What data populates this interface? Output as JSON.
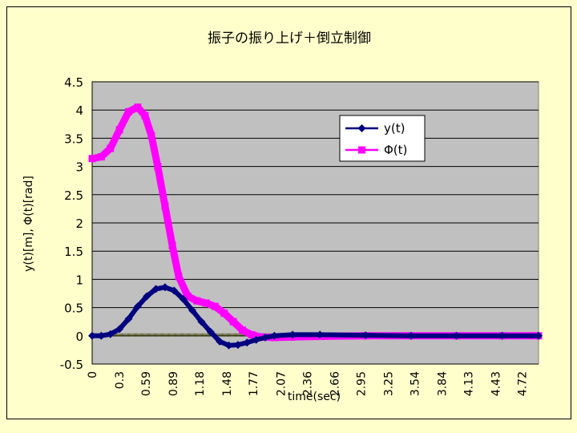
{
  "colors": {
    "background": "#ffffcc",
    "plot_background": "#c0c0c0",
    "grid": "#000000",
    "y_series": "#000080",
    "phi_series": "#ff00ff"
  },
  "chart_data": {
    "type": "line",
    "title": "振子の振り上げ＋倒立制御",
    "xlabel": "time(sec)",
    "ylabel": "y(t)[m], Φ(t)[rad]",
    "ylim": [
      -0.5,
      4.5
    ],
    "xlim": [
      0,
      4.9
    ],
    "grid": true,
    "legend_position": "top-right",
    "y_ticks": [
      "4.5",
      "4",
      "3.5",
      "3",
      "2.5",
      "2",
      "1.5",
      "1",
      "0.5",
      "0",
      "-0.5"
    ],
    "x_ticks": [
      "0",
      "0.3",
      "0.59",
      "0.89",
      "1.18",
      "1.48",
      "1.77",
      "2.07",
      "2.36",
      "2.66",
      "2.95",
      "3.25",
      "3.54",
      "3.84",
      "4.13",
      "4.43",
      "4.72"
    ],
    "series": [
      {
        "name": "y(t)",
        "marker": "diamond",
        "points": [
          [
            0,
            0.0
          ],
          [
            0.1,
            0.0
          ],
          [
            0.2,
            0.03
          ],
          [
            0.3,
            0.12
          ],
          [
            0.4,
            0.3
          ],
          [
            0.5,
            0.52
          ],
          [
            0.6,
            0.7
          ],
          [
            0.7,
            0.83
          ],
          [
            0.8,
            0.86
          ],
          [
            0.9,
            0.8
          ],
          [
            1.0,
            0.65
          ],
          [
            1.1,
            0.45
          ],
          [
            1.2,
            0.25
          ],
          [
            1.3,
            0.07
          ],
          [
            1.4,
            -0.1
          ],
          [
            1.5,
            -0.17
          ],
          [
            1.6,
            -0.16
          ],
          [
            1.7,
            -0.12
          ],
          [
            1.8,
            -0.07
          ],
          [
            1.9,
            -0.03
          ],
          [
            2.0,
            0.0
          ],
          [
            2.2,
            0.02
          ],
          [
            2.5,
            0.02
          ],
          [
            3.0,
            0.01
          ],
          [
            3.5,
            0.0
          ],
          [
            4.0,
            0.0
          ],
          [
            4.5,
            0.0
          ],
          [
            4.9,
            0.0
          ]
        ]
      },
      {
        "name": "Φ(t)",
        "marker": "square",
        "points": [
          [
            0,
            3.14
          ],
          [
            0.1,
            3.17
          ],
          [
            0.2,
            3.32
          ],
          [
            0.3,
            3.65
          ],
          [
            0.4,
            3.97
          ],
          [
            0.5,
            4.05
          ],
          [
            0.58,
            3.9
          ],
          [
            0.65,
            3.55
          ],
          [
            0.72,
            3.0
          ],
          [
            0.8,
            2.3
          ],
          [
            0.88,
            1.6
          ],
          [
            0.95,
            1.05
          ],
          [
            1.05,
            0.7
          ],
          [
            1.15,
            0.62
          ],
          [
            1.25,
            0.58
          ],
          [
            1.35,
            0.52
          ],
          [
            1.45,
            0.4
          ],
          [
            1.55,
            0.25
          ],
          [
            1.65,
            0.1
          ],
          [
            1.75,
            0.02
          ],
          [
            1.85,
            -0.02
          ],
          [
            2.0,
            -0.03
          ],
          [
            2.2,
            -0.02
          ],
          [
            2.5,
            -0.01
          ],
          [
            3.0,
            0.0
          ],
          [
            3.5,
            0.0
          ],
          [
            4.0,
            0.0
          ],
          [
            4.5,
            0.0
          ],
          [
            4.9,
            0.0
          ]
        ]
      }
    ]
  }
}
